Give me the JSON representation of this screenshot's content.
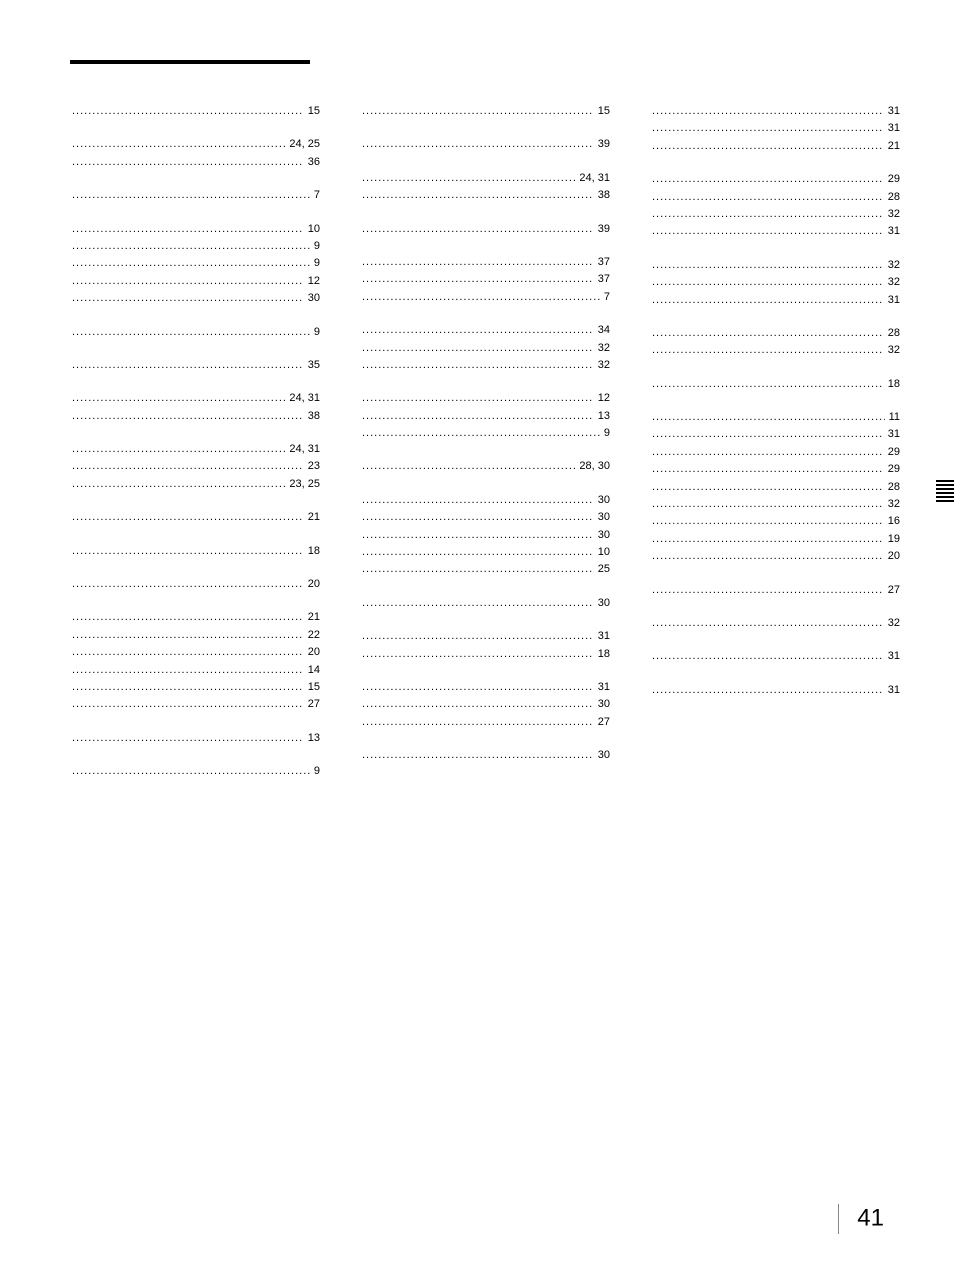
{
  "page_number": "41",
  "columns": [
    [
      [
        {
          "page": "15"
        }
      ],
      [
        {
          "page": "24, 25"
        },
        {
          "page": "36"
        }
      ],
      [
        {
          "page": "7"
        }
      ],
      [
        {
          "page": "10"
        },
        {
          "page": "9"
        },
        {
          "page": "9"
        },
        {
          "page": "12"
        },
        {
          "page": "30"
        }
      ],
      [
        {
          "page": "9"
        }
      ],
      [
        {
          "page": "35"
        }
      ],
      [
        {
          "page": "24, 31"
        },
        {
          "page": "38"
        }
      ],
      [
        {
          "page": "24, 31"
        },
        {
          "page": "23"
        },
        {
          "page": "23, 25"
        }
      ],
      [
        {
          "page": "21"
        }
      ],
      [
        {
          "page": "18"
        }
      ],
      [
        {
          "page": "20"
        }
      ],
      [
        {
          "page": "21"
        },
        {
          "page": "22"
        },
        {
          "page": "20"
        },
        {
          "page": "14"
        },
        {
          "page": "15"
        },
        {
          "page": "27"
        }
      ],
      [
        {
          "page": "13"
        }
      ],
      [
        {
          "page": "9"
        }
      ]
    ],
    [
      [
        {
          "page": "15"
        }
      ],
      [
        {
          "page": "39"
        }
      ],
      [
        {
          "page": "24, 31"
        },
        {
          "page": "38"
        }
      ],
      [
        {
          "page": "39"
        }
      ],
      [
        {
          "page": "37"
        },
        {
          "page": "37"
        },
        {
          "page": "7"
        }
      ],
      [
        {
          "page": "34"
        },
        {
          "page": "32"
        },
        {
          "page": "32"
        }
      ],
      [
        {
          "page": "12"
        },
        {
          "page": "13"
        },
        {
          "page": "9"
        }
      ],
      [
        {
          "page": "28, 30"
        }
      ],
      [
        {
          "page": "30"
        },
        {
          "page": "30"
        },
        {
          "page": "30"
        },
        {
          "page": "10"
        },
        {
          "page": "25"
        }
      ],
      [
        {
          "page": "30"
        }
      ],
      [
        {
          "page": "31"
        },
        {
          "page": "18"
        }
      ],
      [
        {
          "page": "31"
        },
        {
          "page": "30"
        },
        {
          "page": "27"
        }
      ],
      [
        {
          "page": "30"
        }
      ]
    ],
    [
      [
        {
          "page": "31"
        },
        {
          "page": "31"
        },
        {
          "page": "21"
        }
      ],
      [
        {
          "page": "29"
        },
        {
          "page": "28"
        },
        {
          "page": "32"
        },
        {
          "page": "31"
        }
      ],
      [
        {
          "page": "32"
        },
        {
          "page": "32"
        },
        {
          "page": "31"
        }
      ],
      [
        {
          "page": "28"
        },
        {
          "page": "32"
        }
      ],
      [
        {
          "page": "18"
        }
      ],
      [
        {
          "page": "11"
        },
        {
          "page": "31"
        },
        {
          "page": "29"
        },
        {
          "page": "29"
        },
        {
          "page": "28"
        },
        {
          "page": "32"
        },
        {
          "page": "16"
        },
        {
          "page": "19"
        },
        {
          "page": "20"
        }
      ],
      [
        {
          "page": "27"
        }
      ],
      [
        {
          "page": "32"
        }
      ],
      [
        {
          "page": "31"
        }
      ],
      [
        {
          "page": "31"
        }
      ]
    ]
  ]
}
